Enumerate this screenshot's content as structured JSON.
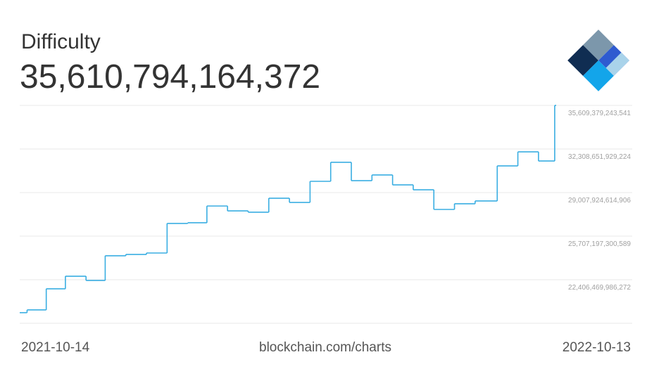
{
  "chart_data": {
    "type": "step",
    "title": "Difficulty",
    "subtitle": "35,610,794,164,372",
    "source": "blockchain.com/charts",
    "x": [
      "2021-10-14",
      "2021-10-19",
      "2021-11-01",
      "2021-11-14",
      "2021-11-28",
      "2021-12-11",
      "2021-12-25",
      "2022-01-08",
      "2022-01-22",
      "2022-02-05",
      "2022-02-18",
      "2022-03-04",
      "2022-03-18",
      "2022-04-01",
      "2022-04-15",
      "2022-04-29",
      "2022-05-13",
      "2022-05-27",
      "2022-06-10",
      "2022-06-24",
      "2022-07-08",
      "2022-07-22",
      "2022-08-05",
      "2022-08-19",
      "2022-09-03",
      "2022-09-17",
      "2022-10-01",
      "2022-10-12"
    ],
    "series": [
      {
        "name": "Difficulty",
        "color": "#3aaee2",
        "values": [
          19910000000000,
          20120000000000,
          21720000000000,
          22670000000000,
          22350000000000,
          24220000000000,
          24320000000000,
          24430000000000,
          26670000000000,
          26720000000000,
          27990000000000,
          27620000000000,
          27520000000000,
          28580000000000,
          28260000000000,
          29860000000000,
          31300000000000,
          29910000000000,
          30340000000000,
          29590000000000,
          29220000000000,
          27730000000000,
          28160000000000,
          28370000000000,
          31030000000000,
          32090000000000,
          31400000000000,
          35610794164372
        ]
      }
    ],
    "xlim": [
      "2021-10-14",
      "2022-10-13"
    ],
    "xticks": [
      "2021-10-14",
      "2022-10-13"
    ],
    "ylim": [
      19105742671955,
      35609379243541
    ],
    "yticks": [
      {
        "value": 35609379243541,
        "label": "35,609,379,243,541"
      },
      {
        "value": 32308651929224,
        "label": "32,308,651,929,224"
      },
      {
        "value": 29007924614906,
        "label": "29,007,924,614,906"
      },
      {
        "value": 25707197300589,
        "label": "25,707,197,300,589"
      },
      {
        "value": 22406469986272,
        "label": "22,406,469,986,272"
      }
    ],
    "grid": true
  }
}
